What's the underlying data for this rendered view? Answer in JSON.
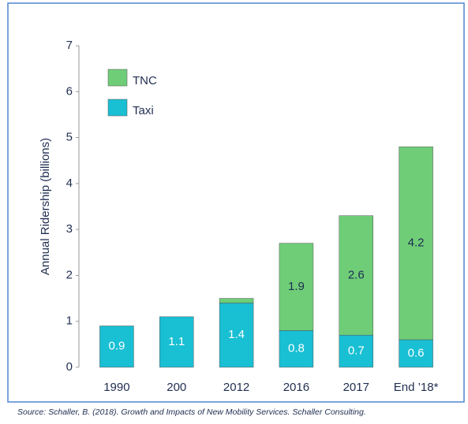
{
  "chart_data": {
    "type": "stacked_bar",
    "categories": [
      "1990",
      "200",
      "2012",
      "2016",
      "2017",
      "End ’18*"
    ],
    "series": [
      {
        "name": "Taxi",
        "color": "#19bfd3",
        "values": [
          0.9,
          1.1,
          1.4,
          0.8,
          0.7,
          0.6
        ]
      },
      {
        "name": "TNC",
        "color": "#6fcd78",
        "values": [
          0,
          0,
          0.1,
          1.9,
          2.6,
          4.2
        ],
        "value_labels": [
          null,
          null,
          null,
          "1.9",
          "2.6",
          "4.2"
        ]
      }
    ],
    "y_label": "Annual Ridership (billions)",
    "ylim": [
      0,
      7
    ],
    "yticks": [
      0,
      1,
      2,
      3,
      4,
      5,
      6,
      7
    ],
    "source": "Source: Schaller, B. (2018). Growth and Impacts of New Mobility Services. Schaller Consulting."
  }
}
